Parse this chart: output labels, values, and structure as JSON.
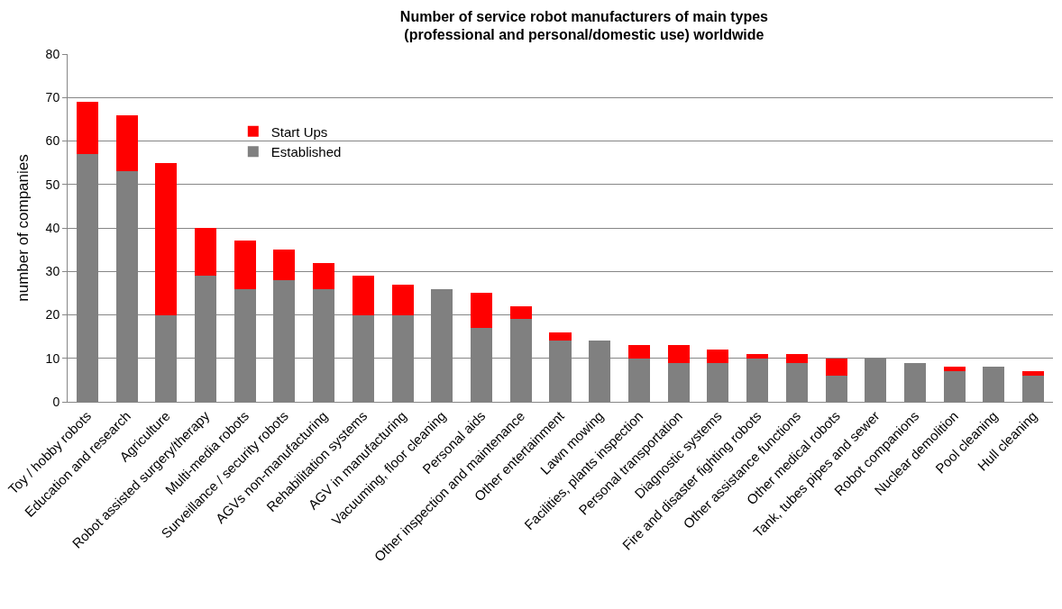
{
  "chart_data": {
    "type": "bar",
    "stacked": true,
    "title": "Number of service robot manufacturers of main types\n(professional and personal/domestic use) worldwide",
    "ylabel": "number of companies",
    "categories": [
      "Toy / hobby robots",
      "Education and research",
      "Agriculture",
      "Robot assisted surgery/therapy",
      "Multi-media robots",
      "Surveillance / security robots",
      "AGVs non-manufacturing",
      "Rehabilitation systems",
      "AGV in manufacturing",
      "Vacuuming, floor cleaning",
      "Personal aids",
      "Other inspection and maintenance",
      "Other entertainment",
      "Lawn mowing",
      "Facilities, plants inspection",
      "Personal transportation",
      "Diagnostic systems",
      "Fire and disaster fighting robots",
      "Other assistance functions",
      "Other medical robots",
      "Tank, tubes pipes and sewer",
      "Robot companions",
      "Nuclear demolition",
      "Pool cleaning",
      "Hull cleaning"
    ],
    "series": [
      {
        "name": "Established",
        "color": "#808080",
        "values": [
          57,
          53,
          20,
          29,
          26,
          28,
          26,
          20,
          20,
          26,
          17,
          19,
          14,
          14,
          10,
          9,
          9,
          10,
          9,
          6,
          10,
          9,
          7,
          8,
          6
        ]
      },
      {
        "name": "Start Ups",
        "color": "#ff0000",
        "values": [
          12,
          13,
          35,
          11,
          11,
          7,
          6,
          9,
          7,
          0,
          8,
          3,
          2,
          0,
          3,
          4,
          3,
          1,
          2,
          4,
          0,
          0,
          1,
          0,
          1
        ]
      }
    ],
    "ylim": [
      0,
      80
    ],
    "yticks": [
      0,
      10,
      20,
      30,
      40,
      50,
      60,
      70,
      80
    ],
    "grid": "y",
    "legend": "top left"
  }
}
